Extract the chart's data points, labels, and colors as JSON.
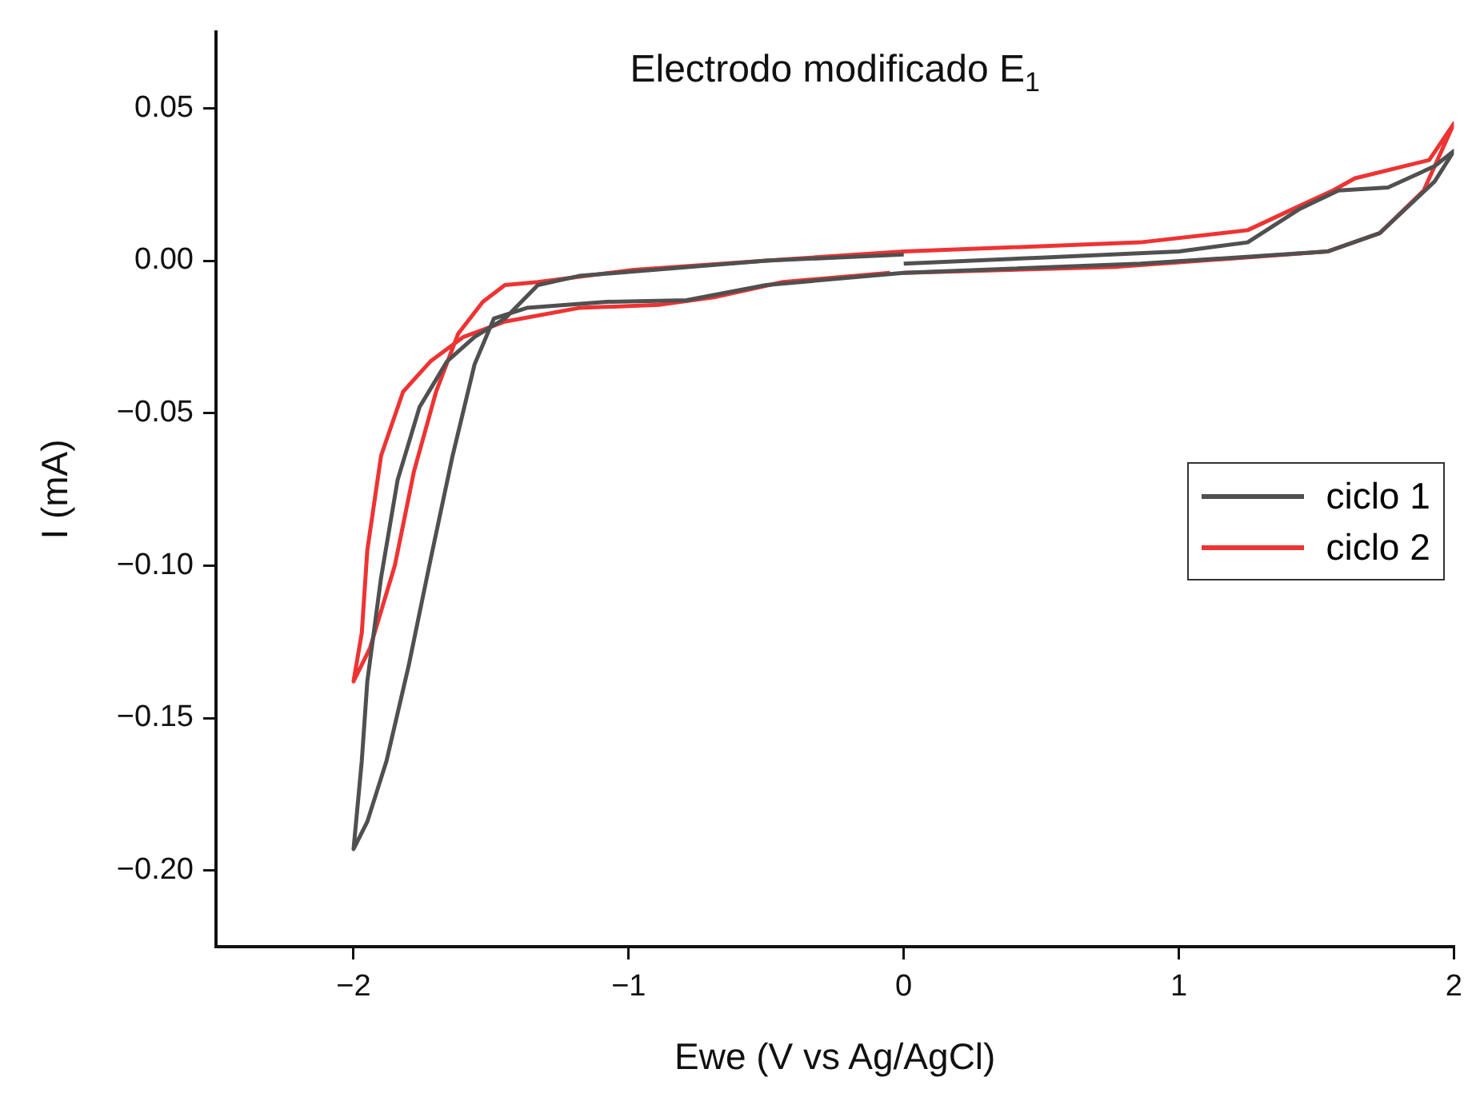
{
  "chart_data": {
    "type": "line",
    "title": "Electrodo modificado E$_{1}$",
    "xlabel": "Ewe (V vs Ag/AgCl)",
    "ylabel": "I (mA)",
    "series": [
      {
        "name": "ciclo 1",
        "color": "#505050",
        "x": [
          0.0,
          0.5,
          1.0,
          1.25,
          1.44,
          1.58,
          1.76,
          1.93,
          2.0,
          1.93,
          1.73,
          1.54,
          0.86,
          0.0,
          -0.5,
          -0.79,
          -1.08,
          -1.37,
          -1.49,
          -1.56,
          -1.64,
          -1.72,
          -1.8,
          -1.88,
          -1.95,
          -2.0,
          -1.97,
          -1.95,
          -1.9,
          -1.84,
          -1.76,
          -1.66,
          -1.56,
          -1.45,
          -1.33,
          -1.18,
          -0.5,
          0.0
        ],
        "values": [
          -0.001,
          0.001,
          0.003,
          0.006,
          0.017,
          0.023,
          0.024,
          0.031,
          0.036,
          0.026,
          0.009,
          0.003,
          -0.001,
          -0.004,
          -0.008,
          -0.013,
          -0.0135,
          -0.0155,
          -0.019,
          -0.034,
          -0.064,
          -0.098,
          -0.133,
          -0.164,
          -0.184,
          -0.193,
          -0.164,
          -0.138,
          -0.104,
          -0.072,
          -0.048,
          -0.033,
          -0.025,
          -0.019,
          -0.008,
          -0.005,
          0.0,
          0.002
        ]
      },
      {
        "name": "ciclo 2",
        "color": "#ee3333",
        "x": [
          0.0,
          0.78,
          1.54,
          1.73,
          1.89,
          2.0,
          1.91,
          1.64,
          1.56,
          1.44,
          1.25,
          0.86,
          0.0,
          -0.5,
          -0.98,
          -1.33,
          -1.45,
          -1.53,
          -1.62,
          -1.7,
          -1.78,
          -1.85,
          -1.94,
          -2.0,
          -1.97,
          -1.95,
          -1.9,
          -1.82,
          -1.72,
          -1.6,
          -1.45,
          -1.18,
          -0.89,
          -0.69,
          -0.44,
          -0.05
        ],
        "values": [
          -0.004,
          -0.002,
          0.003,
          0.009,
          0.023,
          0.045,
          0.033,
          0.027,
          0.023,
          0.018,
          0.01,
          0.006,
          0.003,
          0.0,
          -0.003,
          -0.007,
          -0.008,
          -0.0135,
          -0.024,
          -0.043,
          -0.069,
          -0.1,
          -0.127,
          -0.138,
          -0.122,
          -0.095,
          -0.064,
          -0.043,
          -0.033,
          -0.025,
          -0.02,
          -0.0155,
          -0.0145,
          -0.012,
          -0.007,
          -0.004
        ]
      }
    ],
    "xlim": [
      -2.5,
      2
    ],
    "xticks": [
      {
        "value": -2,
        "label": "−2"
      },
      {
        "value": -1,
        "label": "−1"
      },
      0,
      1,
      2
    ],
    "ylim": [
      -0.225,
      0.075
    ],
    "yticks": [
      {
        "value": -0.2,
        "label": "−0.20"
      },
      {
        "value": -0.15,
        "label": "−0.15"
      },
      {
        "value": -0.1,
        "label": "−0.10"
      },
      {
        "value": -0.05,
        "label": "−0.05"
      },
      {
        "value": 0,
        "label": "0.00"
      },
      {
        "value": 0.05,
        "label": "0.05"
      }
    ],
    "legend": "right",
    "line_style": "solid",
    "marker": "none"
  }
}
